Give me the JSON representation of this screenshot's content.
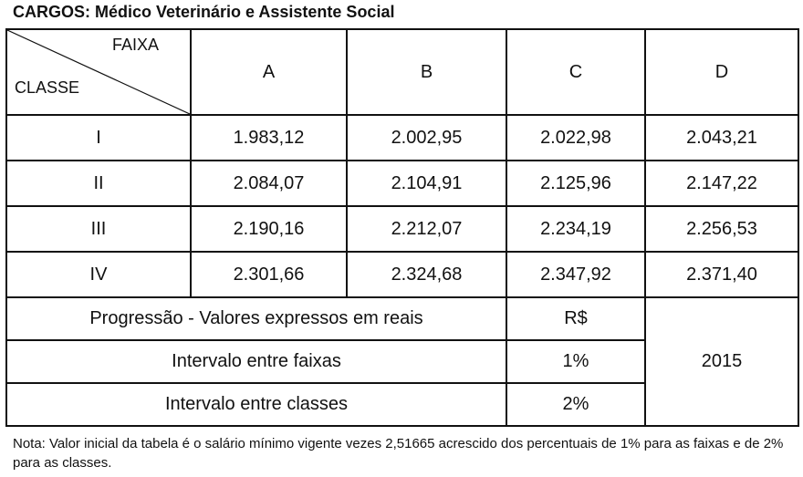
{
  "title": "CARGOS: Médico Veterinário e Assistente Social",
  "table": {
    "corner_top": "FAIXA",
    "corner_bottom": "CLASSE",
    "columns": [
      "A",
      "B",
      "C",
      "D"
    ],
    "rows": [
      {
        "classe": "I",
        "values": [
          "1.983,12",
          "2.002,95",
          "2.022,98",
          "2.043,21"
        ]
      },
      {
        "classe": "II",
        "values": [
          "2.084,07",
          "2.104,91",
          "2.125,96",
          "2.147,22"
        ]
      },
      {
        "classe": "III",
        "values": [
          "2.190,16",
          "2.212,07",
          "2.234,19",
          "2.256,53"
        ]
      },
      {
        "classe": "IV",
        "values": [
          "2.301,66",
          "2.324,68",
          "2.347,92",
          "2.371,40"
        ]
      }
    ]
  },
  "footer": {
    "rows": [
      {
        "label": "Progressão - Valores expressos em reais",
        "value": "R$"
      },
      {
        "label": "Intervalo entre faixas",
        "value": "1%"
      },
      {
        "label": "Intervalo entre classes",
        "value": "2%"
      }
    ],
    "year": "2015"
  },
  "note": "Nota: Valor inicial da tabela é o salário mínimo vigente vezes 2,51665 acrescido dos percentuais de 1% para as faixas e de 2% para as classes."
}
